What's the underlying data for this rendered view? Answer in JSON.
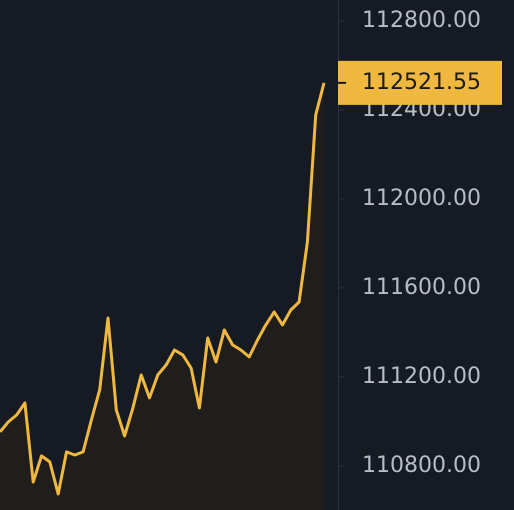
{
  "chart_data": {
    "type": "line",
    "values": [
      110953,
      110998,
      111029,
      111083,
      110728,
      110845,
      110818,
      110674,
      110863,
      110849,
      110863,
      111007,
      111142,
      111465,
      111052,
      110935,
      111061,
      111209,
      111106,
      111209,
      111254,
      111321,
      111299,
      111240,
      111061,
      111375,
      111267,
      111411,
      111344,
      111321,
      111290,
      111366,
      111434,
      111492,
      111434,
      111501,
      111537,
      111807,
      112377,
      112521.55
    ],
    "color": "#efb941",
    "last_value": 112521.55,
    "ylim": [
      110602,
      112894
    ],
    "yticks": [
      {
        "value": 110800,
        "label": "110800.00"
      },
      {
        "value": 111200,
        "label": "111200.00"
      },
      {
        "value": 111600,
        "label": "111600.00"
      },
      {
        "value": 112000,
        "label": "112000.00"
      },
      {
        "value": 112400,
        "label": "112400.00"
      },
      {
        "value": 112800,
        "label": "112800.00"
      }
    ]
  }
}
